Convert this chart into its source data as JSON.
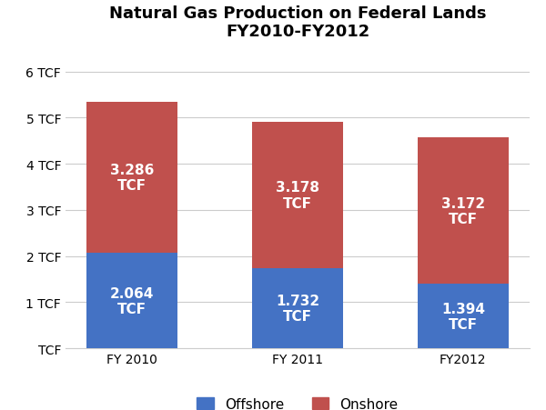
{
  "title_line1": "Natural Gas Production on Federal Lands",
  "title_line2": "FY2010-FY2012",
  "categories": [
    "FY 2010",
    "FY 2011",
    "FY2012"
  ],
  "offshore_values": [
    2.064,
    1.732,
    1.394
  ],
  "onshore_values": [
    3.286,
    3.178,
    3.172
  ],
  "offshore_color": "#4472C4",
  "onshore_color": "#C0504D",
  "bar_width": 0.55,
  "ylim": [
    0,
    6.5
  ],
  "yticks": [
    0,
    1,
    2,
    3,
    4,
    5,
    6
  ],
  "ytick_labels": [
    "TCF",
    "1 TCF",
    "2 TCF",
    "3 TCF",
    "4 TCF",
    "5 TCF",
    "6 TCF"
  ],
  "label_fontsize": 11,
  "title_fontsize": 13,
  "tick_fontsize": 10,
  "legend_fontsize": 11,
  "background_color": "#FFFFFF",
  "grid_color": "#CCCCCC"
}
